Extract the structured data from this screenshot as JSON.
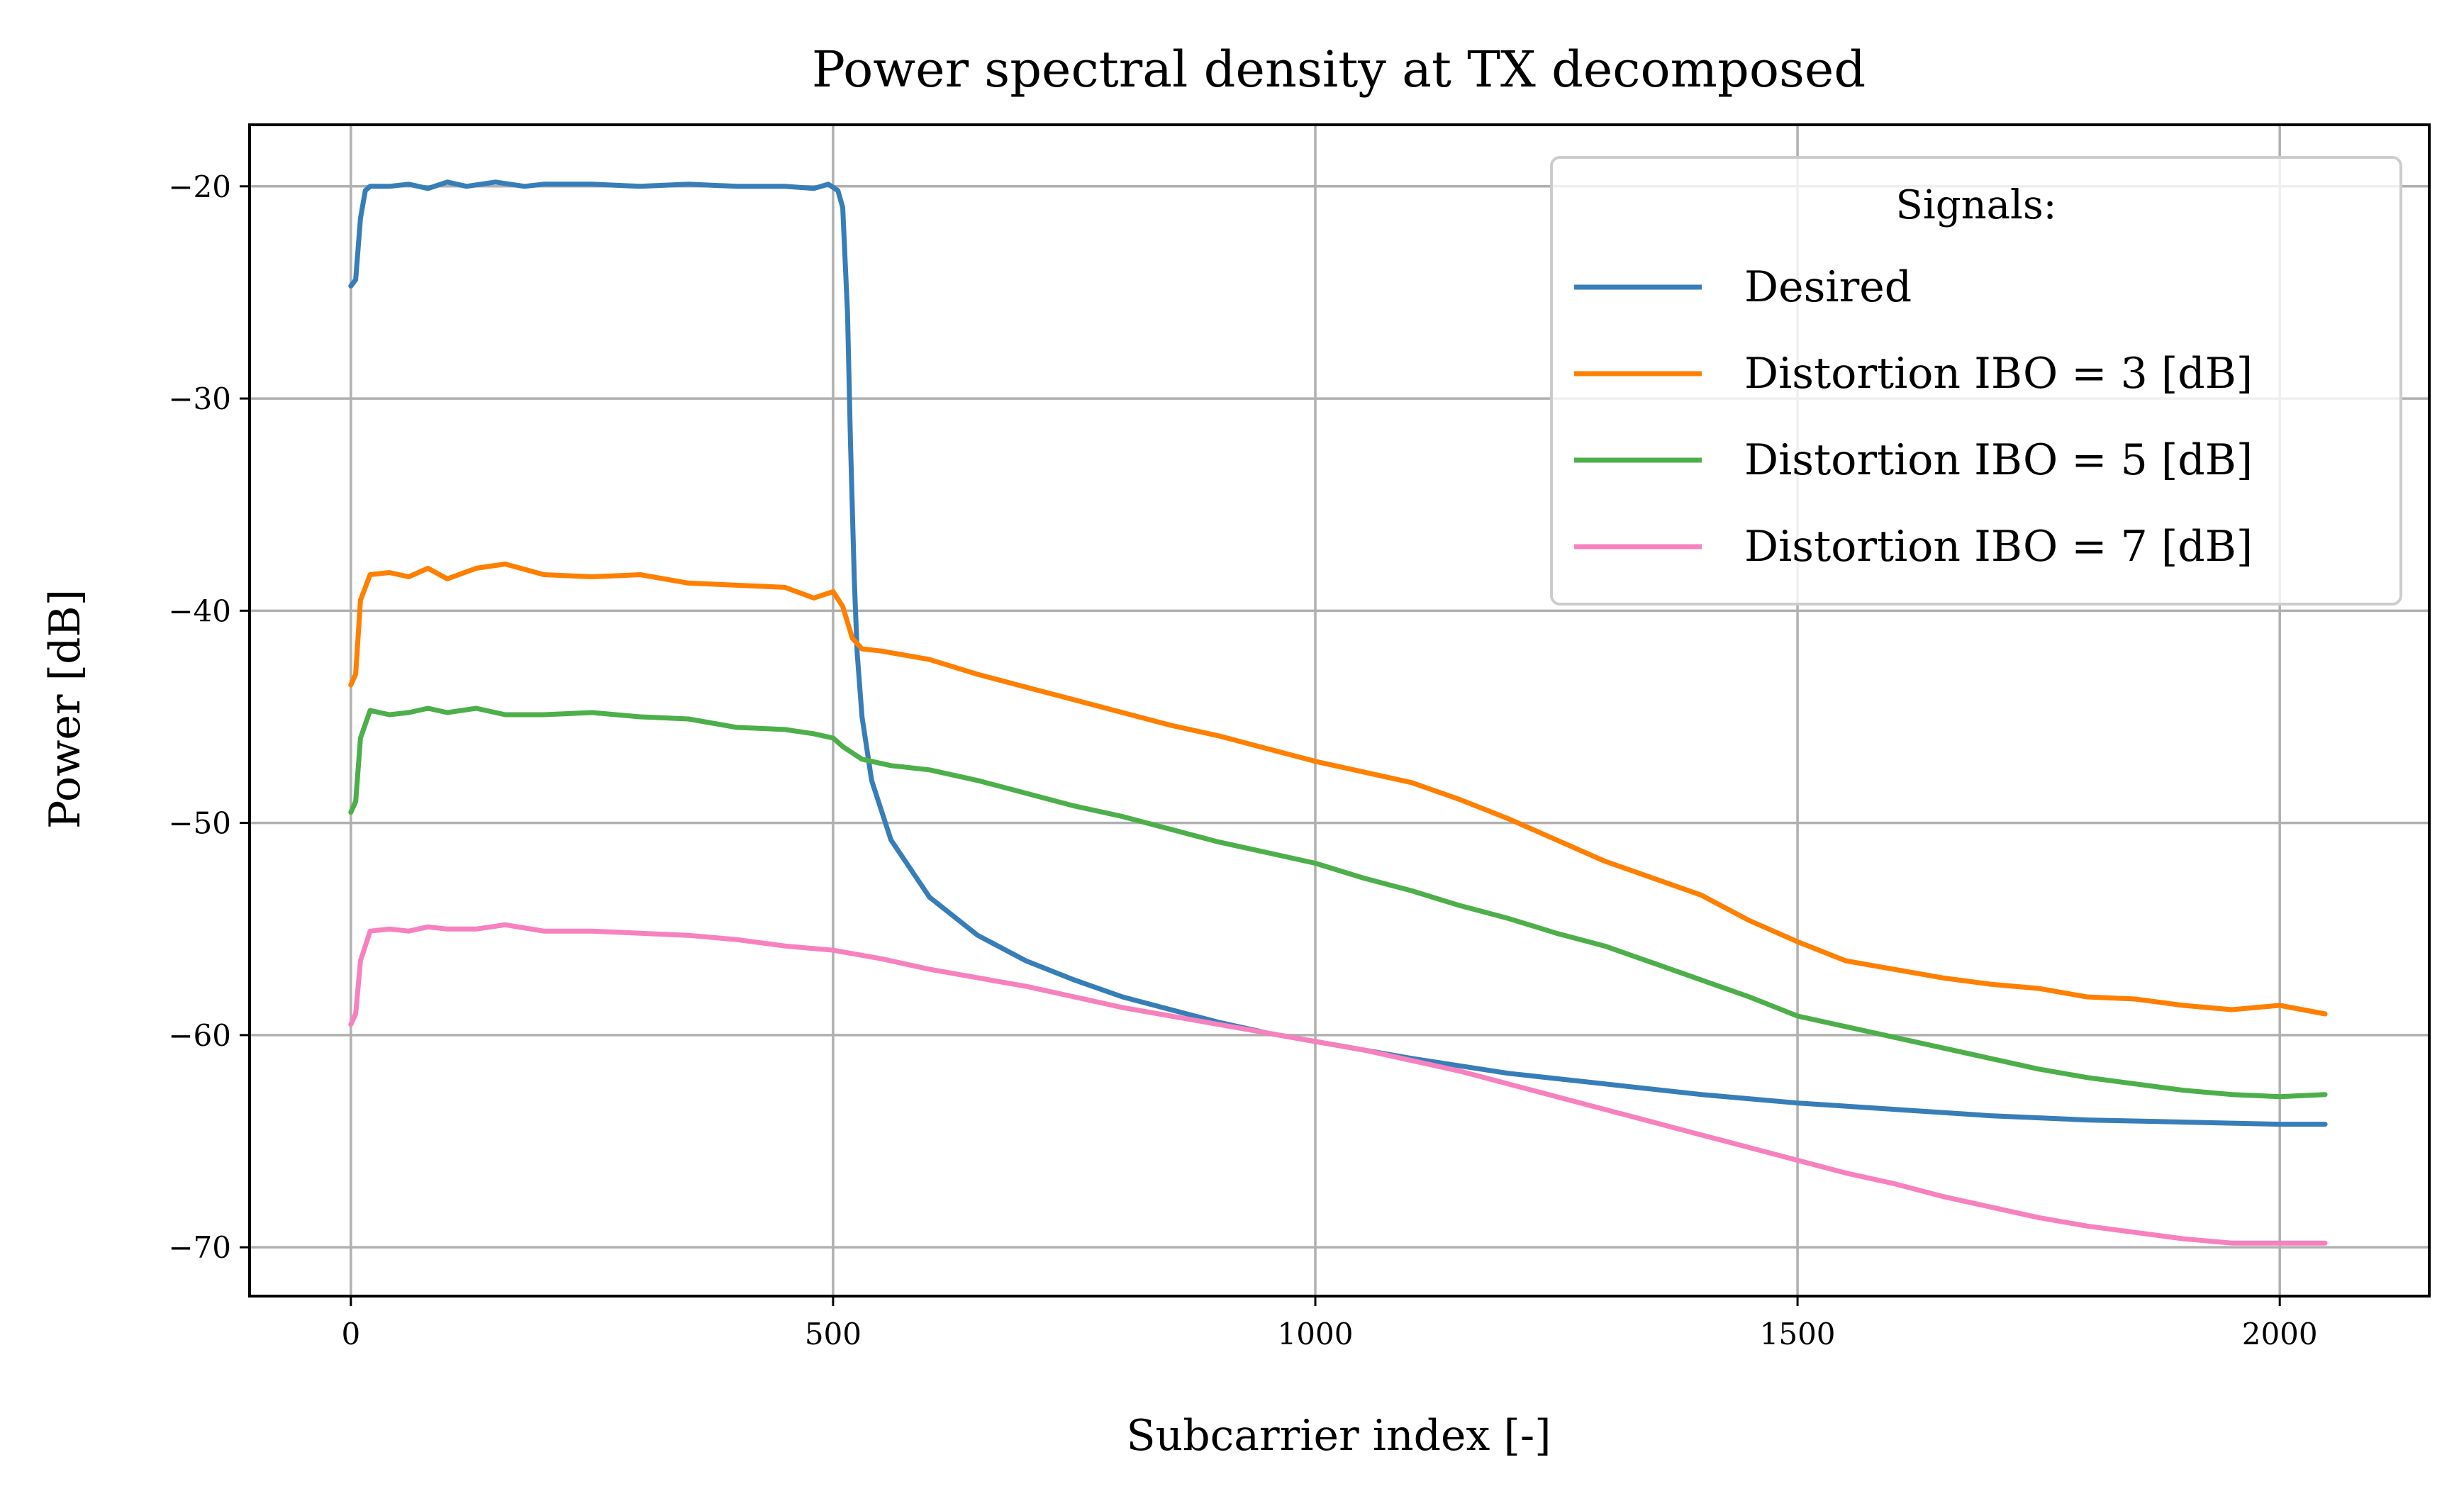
{
  "chart_data": {
    "type": "line",
    "title": "Power spectral density at TX decomposed",
    "xlabel": "Subcarrier index [-]",
    "ylabel": "Power [dB]",
    "xlim": [
      -105,
      2155
    ],
    "ylim": [
      -72.3,
      -17.1
    ],
    "xticks": [
      0,
      500,
      1000,
      1500,
      2000
    ],
    "xtick_labels": [
      "0",
      "500",
      "1000",
      "1500",
      "2000"
    ],
    "yticks": [
      -20,
      -30,
      -40,
      -50,
      -60,
      -70
    ],
    "ytick_labels": [
      "−20",
      "−30",
      "−40",
      "−50",
      "−60",
      "−70"
    ],
    "grid": true,
    "legend": {
      "title": "Signals:",
      "placement": "top-right"
    },
    "series": [
      {
        "name": "Desired",
        "color": "#377eb8",
        "x": [
          0,
          5,
          10,
          15,
          20,
          40,
          60,
          80,
          100,
          120,
          150,
          180,
          200,
          250,
          300,
          350,
          400,
          450,
          480,
          495,
          505,
          510,
          515,
          518,
          522,
          525,
          530,
          540,
          560,
          600,
          650,
          700,
          750,
          800,
          850,
          900,
          950,
          1000,
          1100,
          1200,
          1300,
          1400,
          1500,
          1600,
          1700,
          1800,
          1900,
          2000,
          2047
        ],
        "y": [
          -24.7,
          -24.4,
          -21.5,
          -20.2,
          -20.0,
          -20.0,
          -19.9,
          -20.1,
          -19.8,
          -20.0,
          -19.8,
          -20.0,
          -19.9,
          -19.9,
          -20.0,
          -19.9,
          -20.0,
          -20.0,
          -20.1,
          -19.9,
          -20.2,
          -21.0,
          -26.0,
          -32.0,
          -38.5,
          -42.0,
          -45.0,
          -48.0,
          -50.8,
          -53.5,
          -55.3,
          -56.5,
          -57.4,
          -58.2,
          -58.8,
          -59.4,
          -59.9,
          -60.3,
          -61.1,
          -61.8,
          -62.3,
          -62.8,
          -63.2,
          -63.5,
          -63.8,
          -64.0,
          -64.1,
          -64.2,
          -64.2
        ]
      },
      {
        "name": "Distortion IBO = 3 [dB]",
        "color": "#ff7f00",
        "x": [
          0,
          5,
          10,
          20,
          40,
          60,
          80,
          100,
          130,
          160,
          200,
          250,
          300,
          350,
          400,
          450,
          480,
          500,
          510,
          520,
          530,
          550,
          600,
          650,
          700,
          750,
          800,
          850,
          900,
          950,
          1000,
          1050,
          1100,
          1150,
          1200,
          1250,
          1300,
          1350,
          1400,
          1450,
          1500,
          1550,
          1600,
          1650,
          1700,
          1750,
          1800,
          1850,
          1900,
          1950,
          2000,
          2047
        ],
        "y": [
          -43.5,
          -43.0,
          -39.5,
          -38.3,
          -38.2,
          -38.4,
          -38.0,
          -38.5,
          -38.0,
          -37.8,
          -38.3,
          -38.4,
          -38.3,
          -38.7,
          -38.8,
          -38.9,
          -39.4,
          -39.1,
          -39.8,
          -41.3,
          -41.8,
          -41.9,
          -42.3,
          -43.0,
          -43.6,
          -44.2,
          -44.8,
          -45.4,
          -45.9,
          -46.5,
          -47.1,
          -47.6,
          -48.1,
          -48.9,
          -49.8,
          -50.8,
          -51.8,
          -52.6,
          -53.4,
          -54.6,
          -55.6,
          -56.5,
          -56.9,
          -57.3,
          -57.6,
          -57.8,
          -58.2,
          -58.3,
          -58.6,
          -58.8,
          -58.6,
          -59.0
        ]
      },
      {
        "name": "Distortion IBO = 5 [dB]",
        "color": "#4daf4a",
        "x": [
          0,
          5,
          10,
          20,
          40,
          60,
          80,
          100,
          130,
          160,
          200,
          250,
          300,
          350,
          400,
          450,
          480,
          500,
          510,
          530,
          560,
          600,
          650,
          700,
          750,
          800,
          850,
          900,
          950,
          1000,
          1050,
          1100,
          1150,
          1200,
          1250,
          1300,
          1350,
          1400,
          1450,
          1500,
          1550,
          1600,
          1650,
          1700,
          1750,
          1800,
          1850,
          1900,
          1950,
          2000,
          2047
        ],
        "y": [
          -49.5,
          -49.0,
          -46.0,
          -44.7,
          -44.9,
          -44.8,
          -44.6,
          -44.8,
          -44.6,
          -44.9,
          -44.9,
          -44.8,
          -45.0,
          -45.1,
          -45.5,
          -45.6,
          -45.8,
          -46.0,
          -46.4,
          -47.0,
          -47.3,
          -47.5,
          -48.0,
          -48.6,
          -49.2,
          -49.7,
          -50.3,
          -50.9,
          -51.4,
          -51.9,
          -52.6,
          -53.2,
          -53.9,
          -54.5,
          -55.2,
          -55.8,
          -56.6,
          -57.4,
          -58.2,
          -59.1,
          -59.6,
          -60.1,
          -60.6,
          -61.1,
          -61.6,
          -62.0,
          -62.3,
          -62.6,
          -62.8,
          -62.9,
          -62.8
        ]
      },
      {
        "name": "Distortion IBO = 7 [dB]",
        "color": "#f781bf",
        "x": [
          0,
          5,
          10,
          20,
          40,
          60,
          80,
          100,
          130,
          160,
          200,
          250,
          300,
          350,
          400,
          450,
          500,
          550,
          600,
          650,
          700,
          750,
          800,
          850,
          900,
          950,
          1000,
          1050,
          1100,
          1150,
          1200,
          1250,
          1300,
          1350,
          1400,
          1450,
          1500,
          1550,
          1600,
          1650,
          1700,
          1750,
          1800,
          1850,
          1900,
          1950,
          2000,
          2047
        ],
        "y": [
          -59.5,
          -59.0,
          -56.5,
          -55.1,
          -55.0,
          -55.1,
          -54.9,
          -55.0,
          -55.0,
          -54.8,
          -55.1,
          -55.1,
          -55.2,
          -55.3,
          -55.5,
          -55.8,
          -56.0,
          -56.4,
          -56.9,
          -57.3,
          -57.7,
          -58.2,
          -58.7,
          -59.1,
          -59.5,
          -59.9,
          -60.3,
          -60.7,
          -61.2,
          -61.7,
          -62.3,
          -62.9,
          -63.5,
          -64.1,
          -64.7,
          -65.3,
          -65.9,
          -66.5,
          -67.0,
          -67.6,
          -68.1,
          -68.6,
          -69.0,
          -69.3,
          -69.6,
          -69.8,
          -69.8,
          -69.8
        ]
      }
    ]
  }
}
